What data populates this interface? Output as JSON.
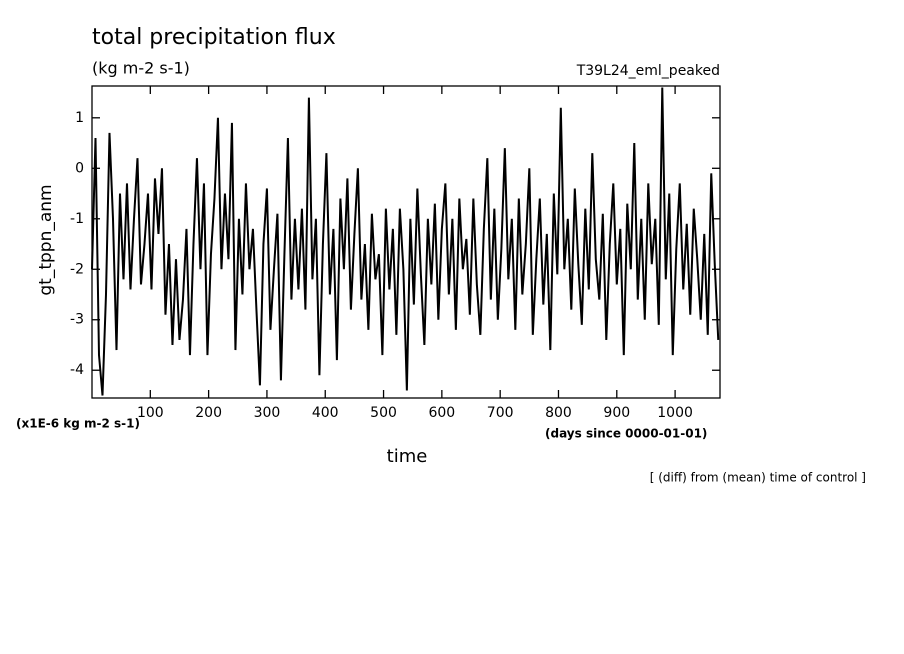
{
  "chart_data": {
    "type": "line",
    "title": "total precipitation flux",
    "subtitle": "(kg m-2 s-1)",
    "run_label": "T39L24_eml_peaked",
    "y_label": "gt_tppn_anm",
    "y_unit": "(x1E-6 kg m-2 s-1)",
    "x_unit": "(days since 0000-01-01)",
    "x_label": "time",
    "note": "[ (diff) from (mean) time of control ]",
    "xlim": [
      0,
      1077
    ],
    "ylim": [
      -4.55,
      1.63
    ],
    "xticks": [
      100,
      200,
      300,
      400,
      500,
      600,
      700,
      800,
      900,
      1000
    ],
    "yticks": [
      -4,
      -3,
      -2,
      -1,
      0,
      1
    ],
    "series": [
      {
        "color": "#000000",
        "x": [
          0,
          6,
          12,
          18,
          24,
          30,
          36,
          42,
          48,
          54,
          60,
          66,
          72,
          78,
          84,
          90,
          96,
          102,
          108,
          114,
          120,
          126,
          132,
          138,
          144,
          150,
          156,
          162,
          168,
          174,
          180,
          186,
          192,
          198,
          204,
          210,
          216,
          222,
          228,
          234,
          240,
          246,
          252,
          258,
          264,
          270,
          276,
          282,
          288,
          294,
          300,
          306,
          312,
          318,
          324,
          330,
          336,
          342,
          348,
          354,
          360,
          366,
          372,
          378,
          384,
          390,
          396,
          402,
          408,
          414,
          420,
          426,
          432,
          438,
          444,
          450,
          456,
          462,
          468,
          474,
          480,
          486,
          492,
          498,
          504,
          510,
          516,
          522,
          528,
          534,
          540,
          546,
          552,
          558,
          564,
          570,
          576,
          582,
          588,
          594,
          600,
          606,
          612,
          618,
          624,
          630,
          636,
          642,
          648,
          654,
          660,
          666,
          672,
          678,
          684,
          690,
          696,
          702,
          708,
          714,
          720,
          726,
          732,
          738,
          744,
          750,
          756,
          762,
          768,
          774,
          780,
          786,
          792,
          798,
          804,
          810,
          816,
          822,
          828,
          834,
          840,
          846,
          852,
          858,
          864,
          870,
          876,
          882,
          888,
          894,
          900,
          906,
          912,
          918,
          924,
          930,
          936,
          942,
          948,
          954,
          960,
          966,
          972,
          978,
          984,
          990,
          996,
          1002,
          1008,
          1014,
          1020,
          1026,
          1032,
          1038,
          1044,
          1050,
          1056,
          1062,
          1068,
          1074
        ],
        "values": [
          -2.0,
          0.6,
          -3.7,
          -4.5,
          -2.5,
          0.7,
          -1.0,
          -3.6,
          -0.5,
          -2.2,
          -0.3,
          -2.4,
          -1.0,
          0.2,
          -2.3,
          -1.5,
          -0.5,
          -2.4,
          -0.2,
          -1.3,
          0.0,
          -2.9,
          -1.5,
          -3.5,
          -1.8,
          -3.4,
          -2.6,
          -1.2,
          -3.7,
          -1.5,
          0.2,
          -2.0,
          -0.3,
          -3.7,
          -1.7,
          -0.6,
          1.0,
          -2.0,
          -0.5,
          -1.8,
          0.9,
          -3.6,
          -1.0,
          -2.5,
          -0.3,
          -2.0,
          -1.2,
          -2.8,
          -4.3,
          -1.5,
          -0.4,
          -3.2,
          -2.0,
          -0.9,
          -4.2,
          -1.7,
          0.6,
          -2.6,
          -1.0,
          -2.4,
          -0.8,
          -2.8,
          1.4,
          -2.2,
          -1.0,
          -4.1,
          -1.5,
          0.3,
          -2.5,
          -1.2,
          -3.8,
          -0.6,
          -2.0,
          -0.2,
          -2.8,
          -1.3,
          0.0,
          -2.6,
          -1.5,
          -3.2,
          -0.9,
          -2.2,
          -1.7,
          -3.7,
          -0.8,
          -2.4,
          -1.2,
          -3.3,
          -0.8,
          -2.0,
          -4.4,
          -1.0,
          -2.7,
          -0.4,
          -2.1,
          -3.5,
          -1.0,
          -2.3,
          -0.7,
          -3.0,
          -1.2,
          -0.3,
          -2.5,
          -1.0,
          -3.2,
          -0.6,
          -2.0,
          -1.4,
          -2.9,
          -0.6,
          -2.3,
          -3.3,
          -1.2,
          0.2,
          -2.6,
          -0.8,
          -3.0,
          -1.6,
          0.4,
          -2.2,
          -1.0,
          -3.2,
          -0.6,
          -2.5,
          -1.5,
          0.0,
          -3.3,
          -1.8,
          -0.6,
          -2.7,
          -1.3,
          -3.6,
          -0.5,
          -2.1,
          1.2,
          -2.0,
          -1.0,
          -2.8,
          -0.4,
          -1.9,
          -3.1,
          -0.8,
          -2.4,
          0.3,
          -1.8,
          -2.6,
          -0.9,
          -3.4,
          -1.5,
          -0.3,
          -2.3,
          -1.2,
          -3.7,
          -0.7,
          -2.0,
          0.5,
          -2.6,
          -1.0,
          -3.0,
          -0.3,
          -1.9,
          -1.0,
          -3.1,
          1.6,
          -2.2,
          -0.5,
          -3.7,
          -1.6,
          -0.3,
          -2.4,
          -1.1,
          -2.9,
          -0.8,
          -1.8,
          -3.0,
          -1.3,
          -3.3,
          -0.1,
          -1.9,
          -3.4
        ]
      }
    ]
  }
}
